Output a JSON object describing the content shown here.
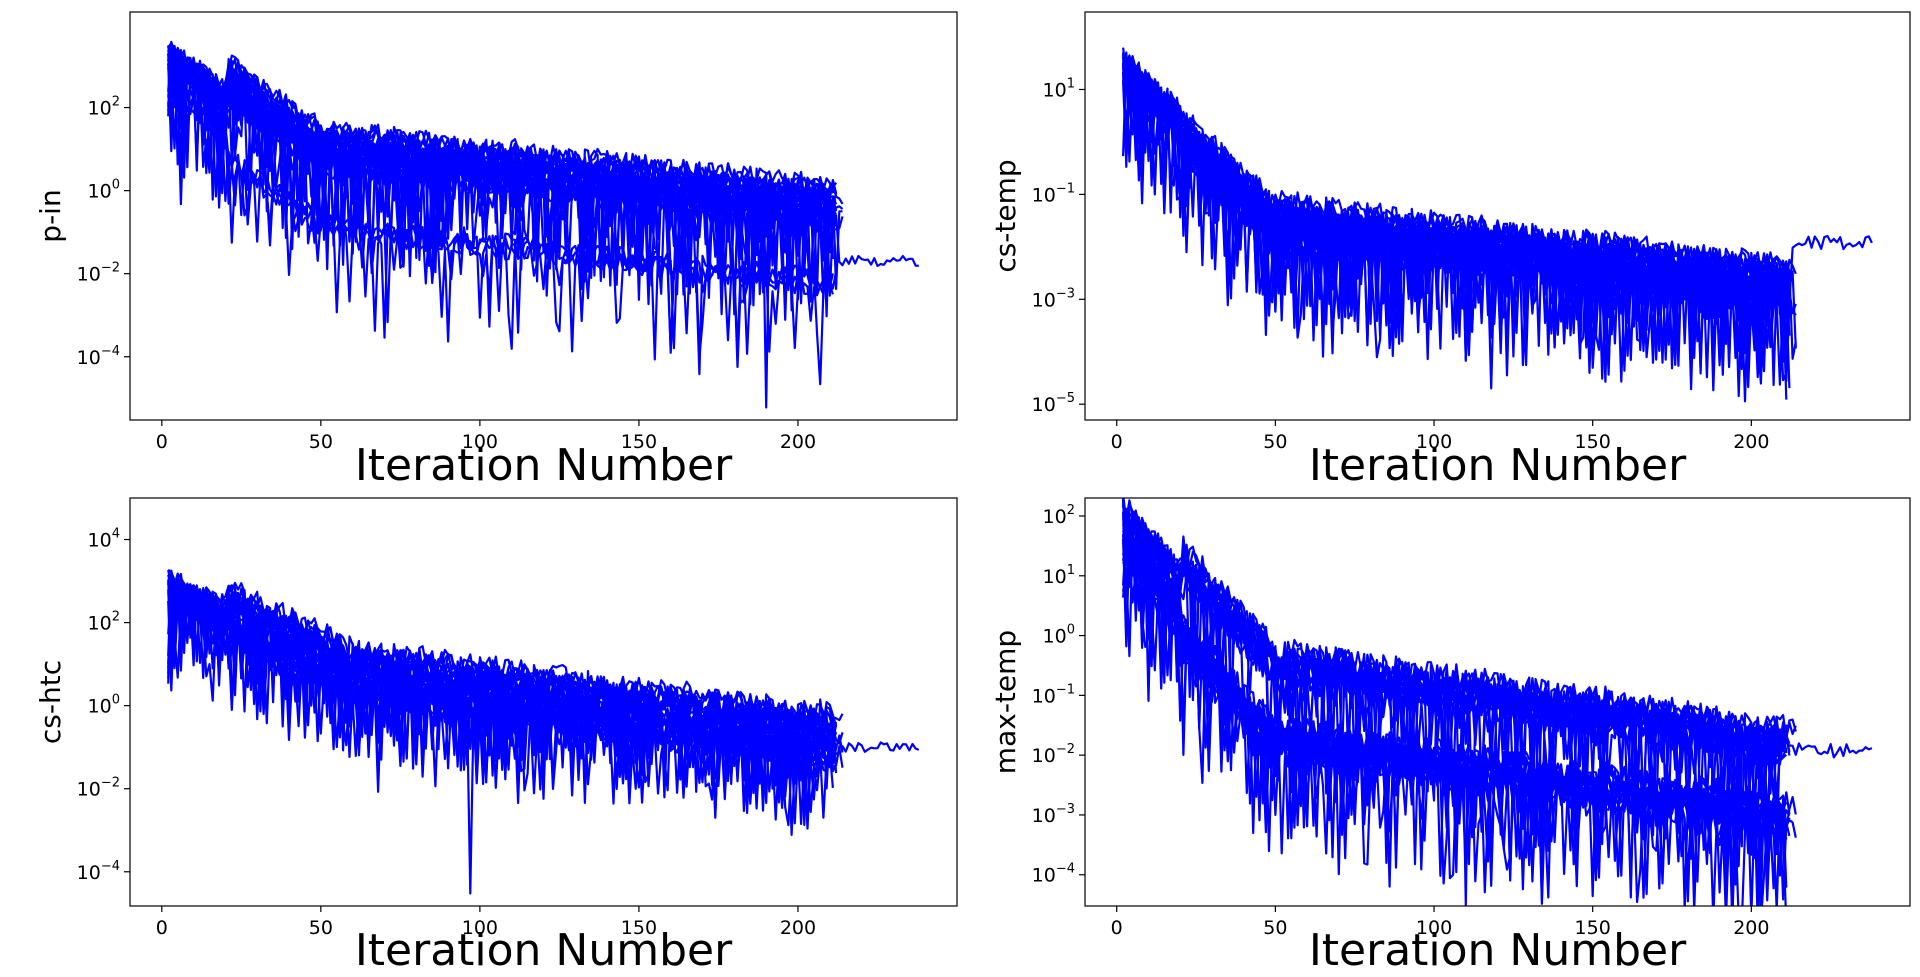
{
  "theme": {
    "line_color": "#0000ff"
  },
  "chart_data": [
    {
      "type": "line",
      "ylabel": "p-in",
      "xlabel": "Iteration Number",
      "yscale": "log",
      "xlim": [
        -10,
        250
      ],
      "ylim": [
        3e-06,
        20000
      ],
      "xticks": [
        0,
        50,
        100,
        150,
        200
      ],
      "yticks_exp": [
        2,
        0,
        -2,
        -4
      ],
      "series_count": 30,
      "profile": {
        "start": 900,
        "mid_x": 50,
        "mid": 2,
        "end": 0.08,
        "end_x": 212,
        "spike_depth": 2.5,
        "spread": 1.2
      },
      "outlier": {
        "min_value": 6e-06,
        "at_iteration": 190
      },
      "longest_run": {
        "end_x": 238,
        "end_value": 0.02
      }
    },
    {
      "type": "line",
      "ylabel": "cs-temp",
      "xlabel": "Iteration Number",
      "yscale": "log",
      "xlim": [
        -10,
        250
      ],
      "ylim": [
        5e-06,
        300
      ],
      "xticks": [
        0,
        50,
        100,
        150,
        200
      ],
      "yticks_exp": [
        1,
        -1,
        -3,
        -5
      ],
      "series_count": 30,
      "profile": {
        "start": 40,
        "mid_x": 50,
        "mid": 0.08,
        "end": 0.005,
        "end_x": 212,
        "spike_depth": 2.0,
        "spread": 0.8
      },
      "outlier": {
        "min_value": 2e-05,
        "at_iteration": 118
      },
      "longest_run": {
        "end_x": 238,
        "end_value": 0.012
      }
    },
    {
      "type": "line",
      "ylabel": "cs-htc",
      "xlabel": "Iteration Number",
      "yscale": "log",
      "xlim": [
        -10,
        250
      ],
      "ylim": [
        1.5e-05,
        100000
      ],
      "xticks": [
        0,
        50,
        100,
        150,
        200
      ],
      "yticks_exp": [
        4,
        2,
        0,
        -2,
        -4
      ],
      "series_count": 30,
      "profile": {
        "start": 500,
        "mid_x": 60,
        "mid": 3,
        "end": 0.08,
        "end_x": 212,
        "spike_depth": 2.0,
        "spread": 1.4
      },
      "outlier": {
        "min_value": 3e-05,
        "at_iteration": 97
      },
      "longest_run": {
        "end_x": 238,
        "end_value": 0.1
      }
    },
    {
      "type": "line",
      "ylabel": "max-temp",
      "xlabel": "Iteration Number",
      "yscale": "log",
      "xlim": [
        -10,
        250
      ],
      "ylim": [
        3e-05,
        200
      ],
      "xticks": [
        0,
        50,
        100,
        150,
        200
      ],
      "yticks_exp": [
        2,
        1,
        0,
        -1,
        -2,
        -3,
        -4
      ],
      "series_count": 30,
      "profile": {
        "start": 60,
        "mid_x": 50,
        "mid": 0.08,
        "end": 0.004,
        "end_x": 212,
        "spike_depth": 2.0,
        "spread": 0.8
      },
      "outlier": {
        "min_value": 3e-05,
        "at_iteration": 110
      },
      "longest_run": {
        "end_x": 238,
        "end_value": 0.012
      }
    }
  ]
}
